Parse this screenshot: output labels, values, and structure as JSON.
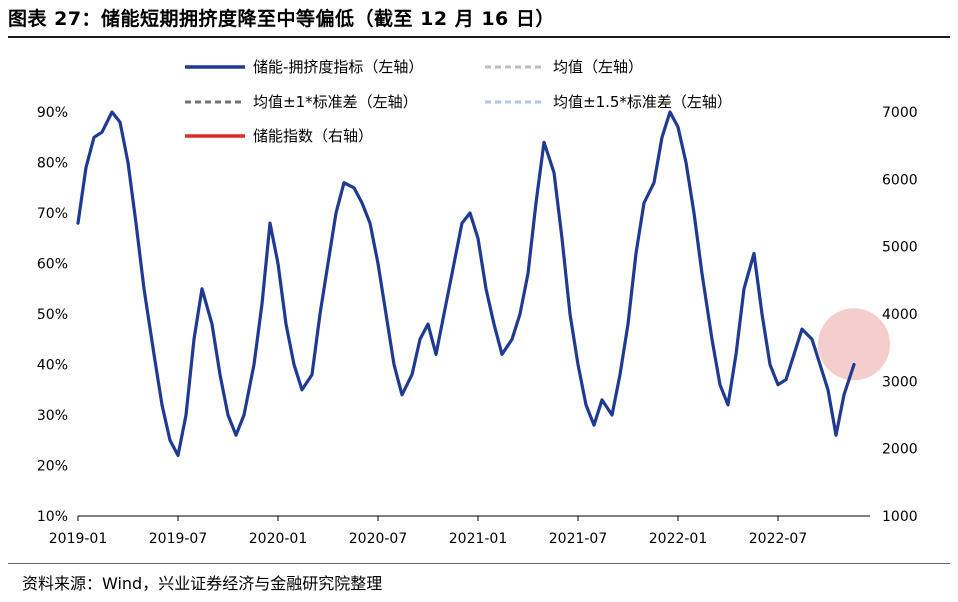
{
  "header": {
    "title": "图表 27：储能短期拥挤度降至中等偏低（截至 12 月 16 日）"
  },
  "footer": {
    "source": "资料来源：Wind，兴业证券经济与金融研究院整理"
  },
  "colors": {
    "crowding": "#1f3a93",
    "mean": "#bfbfbf",
    "sd1": "#767171",
    "sd15": "#b4c7e7",
    "index": "#e02b2b",
    "highlight": "#f2c4c4"
  },
  "chart_data": {
    "type": "line",
    "y_left": {
      "ticks": [
        "10%",
        "20%",
        "30%",
        "40%",
        "50%",
        "60%",
        "70%",
        "80%",
        "90%"
      ],
      "min": 10,
      "max": 90,
      "unit": "%"
    },
    "y_right": {
      "ticks": [
        "1000",
        "2000",
        "3000",
        "4000",
        "5000",
        "6000",
        "7000"
      ],
      "min": 1000,
      "max": 7000
    },
    "x_ticks": [
      "2019-01",
      "2019-07",
      "2020-01",
      "2020-07",
      "2021-01",
      "2021-07",
      "2022-01",
      "2022-07"
    ],
    "x_range": [
      2019.0,
      2022.96
    ],
    "legend": [
      {
        "key": "crowding",
        "label": "储能-拥挤度指标（左轴）"
      },
      {
        "key": "mean",
        "label": "均值（左轴）"
      },
      {
        "key": "sd1",
        "label": "均值±1*标准差（左轴）"
      },
      {
        "key": "sd15",
        "label": "均值±1.5*标准差（左轴）"
      },
      {
        "key": "index",
        "label": "储能指数（右轴）"
      }
    ],
    "highlight": {
      "x": 2022.88,
      "y": 44
    },
    "series": [
      {
        "key": "crowding",
        "name": "储能-拥挤度指标（左轴）",
        "axis": "left",
        "points": [
          [
            2019.0,
            68
          ],
          [
            2019.04,
            79
          ],
          [
            2019.08,
            85
          ],
          [
            2019.12,
            86
          ],
          [
            2019.17,
            90
          ],
          [
            2019.21,
            88
          ],
          [
            2019.25,
            80
          ],
          [
            2019.29,
            68
          ],
          [
            2019.33,
            55
          ],
          [
            2019.38,
            42
          ],
          [
            2019.42,
            32
          ],
          [
            2019.46,
            25
          ],
          [
            2019.5,
            22
          ],
          [
            2019.54,
            30
          ],
          [
            2019.58,
            45
          ],
          [
            2019.62,
            55
          ],
          [
            2019.67,
            48
          ],
          [
            2019.71,
            38
          ],
          [
            2019.75,
            30
          ],
          [
            2019.79,
            26
          ],
          [
            2019.83,
            30
          ],
          [
            2019.88,
            40
          ],
          [
            2019.92,
            52
          ],
          [
            2019.96,
            68
          ],
          [
            2020.0,
            60
          ],
          [
            2020.04,
            48
          ],
          [
            2020.08,
            40
          ],
          [
            2020.12,
            35
          ],
          [
            2020.17,
            38
          ],
          [
            2020.21,
            50
          ],
          [
            2020.25,
            60
          ],
          [
            2020.29,
            70
          ],
          [
            2020.33,
            76
          ],
          [
            2020.38,
            75
          ],
          [
            2020.42,
            72
          ],
          [
            2020.46,
            68
          ],
          [
            2020.5,
            60
          ],
          [
            2020.54,
            50
          ],
          [
            2020.58,
            40
          ],
          [
            2020.62,
            34
          ],
          [
            2020.67,
            38
          ],
          [
            2020.71,
            45
          ],
          [
            2020.75,
            48
          ],
          [
            2020.79,
            42
          ],
          [
            2020.83,
            50
          ],
          [
            2020.88,
            60
          ],
          [
            2020.92,
            68
          ],
          [
            2020.96,
            70
          ],
          [
            2021.0,
            65
          ],
          [
            2021.04,
            55
          ],
          [
            2021.08,
            48
          ],
          [
            2021.12,
            42
          ],
          [
            2021.17,
            45
          ],
          [
            2021.21,
            50
          ],
          [
            2021.25,
            58
          ],
          [
            2021.29,
            72
          ],
          [
            2021.33,
            84
          ],
          [
            2021.38,
            78
          ],
          [
            2021.42,
            65
          ],
          [
            2021.46,
            50
          ],
          [
            2021.5,
            40
          ],
          [
            2021.54,
            32
          ],
          [
            2021.58,
            28
          ],
          [
            2021.62,
            33
          ],
          [
            2021.67,
            30
          ],
          [
            2021.71,
            38
          ],
          [
            2021.75,
            48
          ],
          [
            2021.79,
            62
          ],
          [
            2021.83,
            72
          ],
          [
            2021.88,
            76
          ],
          [
            2021.92,
            85
          ],
          [
            2021.96,
            90
          ],
          [
            2022.0,
            87
          ],
          [
            2022.04,
            80
          ],
          [
            2022.08,
            70
          ],
          [
            2022.12,
            58
          ],
          [
            2022.17,
            45
          ],
          [
            2022.21,
            36
          ],
          [
            2022.25,
            32
          ],
          [
            2022.29,
            42
          ],
          [
            2022.33,
            55
          ],
          [
            2022.38,
            62
          ],
          [
            2022.42,
            50
          ],
          [
            2022.46,
            40
          ],
          [
            2022.5,
            36
          ],
          [
            2022.54,
            37
          ],
          [
            2022.58,
            42
          ],
          [
            2022.62,
            47
          ],
          [
            2022.67,
            45
          ],
          [
            2022.71,
            40
          ],
          [
            2022.75,
            35
          ],
          [
            2022.79,
            26
          ],
          [
            2022.83,
            34
          ],
          [
            2022.88,
            40
          ]
        ]
      }
    ]
  }
}
